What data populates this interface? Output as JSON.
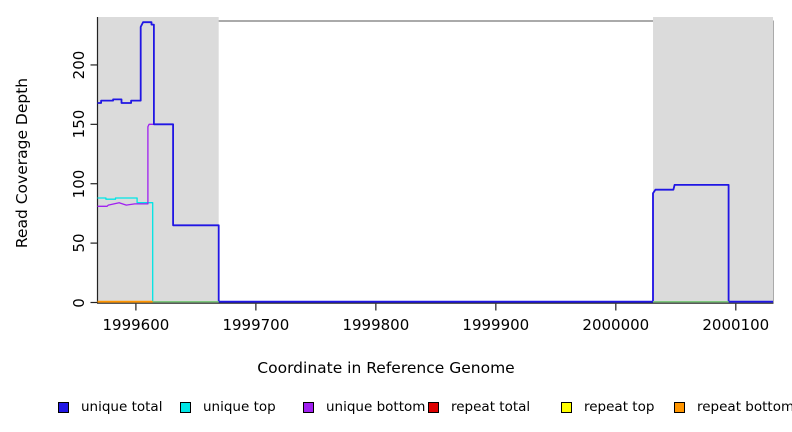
{
  "chart_data": {
    "type": "line",
    "title": "",
    "xlabel": "Coordinate in Reference Genome",
    "ylabel": "Read Coverage Depth",
    "xlim": [
      1999568,
      2000131
    ],
    "ylim": [
      0,
      237
    ],
    "xticks": [
      1999600,
      1999700,
      1999800,
      1999900,
      2000000,
      2000100
    ],
    "yticks": [
      0,
      50,
      100,
      150,
      200
    ],
    "grid": false,
    "legend_position": "bottom",
    "shaded_region_color": "#DBDBDB",
    "shaded_regions": [
      {
        "x0": 1999568,
        "x1": 1999669
      },
      {
        "x0": 2000031,
        "x1": 2000131
      }
    ],
    "series": [
      {
        "name": "unique top",
        "color": "#00E5E5",
        "width": 1.3,
        "points": [
          [
            1999568,
            88
          ],
          [
            1999575,
            88
          ],
          [
            1999575,
            87
          ],
          [
            1999583,
            87
          ],
          [
            1999583,
            88
          ],
          [
            1999601,
            88
          ],
          [
            1999601,
            84
          ],
          [
            1999614,
            84
          ],
          [
            1999614,
            0
          ],
          [
            2000131,
            0
          ]
        ]
      },
      {
        "name": "unique bottom",
        "color": "#A020F0",
        "width": 1.3,
        "points": [
          [
            1999568,
            81
          ],
          [
            1999576,
            81
          ],
          [
            1999577,
            82
          ],
          [
            1999586,
            84
          ],
          [
            1999592,
            82
          ],
          [
            1999599,
            83
          ],
          [
            1999610,
            83
          ],
          [
            1999610,
            148
          ],
          [
            1999611,
            150
          ],
          [
            1999631,
            150
          ],
          [
            1999631,
            65
          ],
          [
            1999669,
            65
          ],
          [
            1999669,
            0
          ],
          [
            2000031,
            0
          ],
          [
            2000031,
            92
          ],
          [
            2000033,
            95
          ],
          [
            2000048,
            95
          ],
          [
            2000049,
            99
          ],
          [
            2000094,
            99
          ],
          [
            2000094,
            0
          ],
          [
            2000131,
            0
          ]
        ]
      },
      {
        "name": "unique total",
        "color": "#2016E4",
        "width": 1.8,
        "points": [
          [
            1999568,
            168
          ],
          [
            1999571,
            168
          ],
          [
            1999571,
            170
          ],
          [
            1999581,
            170
          ],
          [
            1999581,
            171
          ],
          [
            1999588,
            171
          ],
          [
            1999588,
            168
          ],
          [
            1999596,
            168
          ],
          [
            1999596,
            170
          ],
          [
            1999604,
            170
          ],
          [
            1999604,
            232
          ],
          [
            1999606,
            236
          ],
          [
            1999613,
            236
          ],
          [
            1999613,
            234
          ],
          [
            1999615,
            234
          ],
          [
            1999615,
            150
          ],
          [
            1999631,
            150
          ],
          [
            1999631,
            65
          ],
          [
            1999669,
            65
          ],
          [
            1999669,
            0
          ],
          [
            2000031,
            0
          ],
          [
            2000031,
            92
          ],
          [
            2000033,
            95
          ],
          [
            2000048,
            95
          ],
          [
            2000049,
            99
          ],
          [
            2000094,
            99
          ],
          [
            2000094,
            0
          ],
          [
            2000131,
            0
          ]
        ]
      },
      {
        "name": "repeat total",
        "color": "#DD0000",
        "width": 1.5,
        "points": [
          [
            1999568,
            0
          ],
          [
            1999614,
            0
          ]
        ]
      },
      {
        "name": "repeat top",
        "color": "#FFFF00",
        "width": 1.5,
        "points": [
          [
            1999568,
            0
          ],
          [
            1999614,
            0
          ]
        ]
      },
      {
        "name": "repeat bottom",
        "color": "#FF9500",
        "width": 1.8,
        "points": [
          [
            1999568,
            0
          ],
          [
            1999614,
            0
          ]
        ]
      }
    ],
    "zero_overlay_segments": [
      {
        "x0": 1999614,
        "x1": 1999669,
        "color": "#7CC87C"
      },
      {
        "x0": 2000031,
        "x1": 2000094,
        "color": "#7CC87C"
      }
    ],
    "legend_order": [
      "unique total",
      "unique top",
      "unique bottom",
      "repeat total",
      "repeat top",
      "repeat bottom"
    ]
  }
}
